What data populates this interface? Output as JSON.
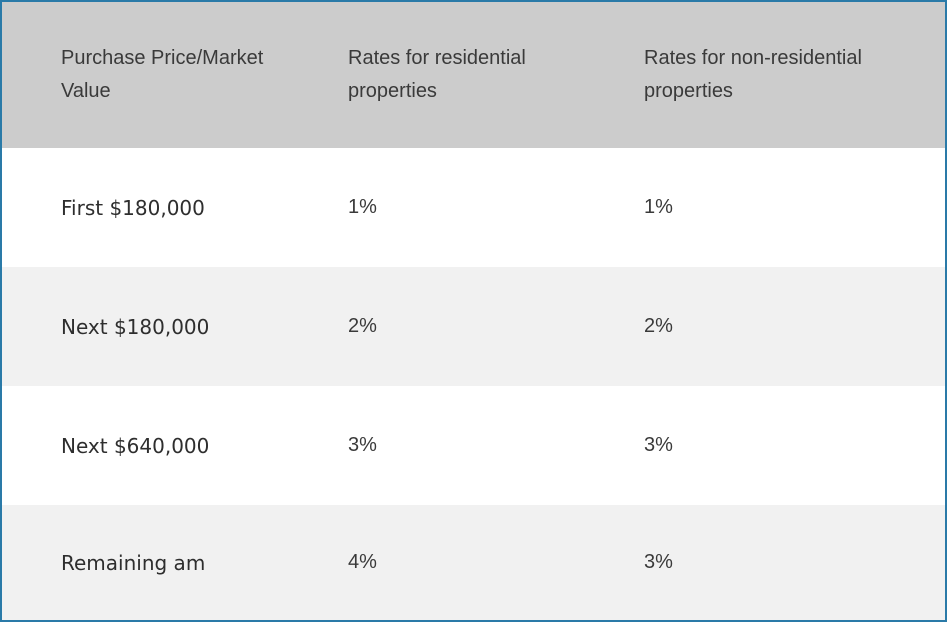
{
  "table": {
    "headers": [
      "Purchase Price/Market Value",
      "Rates for residential properties",
      "Rates for non-residential properties"
    ],
    "rows": [
      [
        "First $180,000",
        "1%",
        "1%"
      ],
      [
        "Next $180,000",
        "2%",
        "2%"
      ],
      [
        "Next $640,000",
        "3%",
        "3%"
      ],
      [
        "Remaining am",
        "4%",
        "3%"
      ]
    ]
  },
  "colors": {
    "border": "#2a7aa8",
    "header_bg": "#cccccc",
    "row_alt_bg": "#f1f1f1",
    "text": "#3a3a3a"
  }
}
